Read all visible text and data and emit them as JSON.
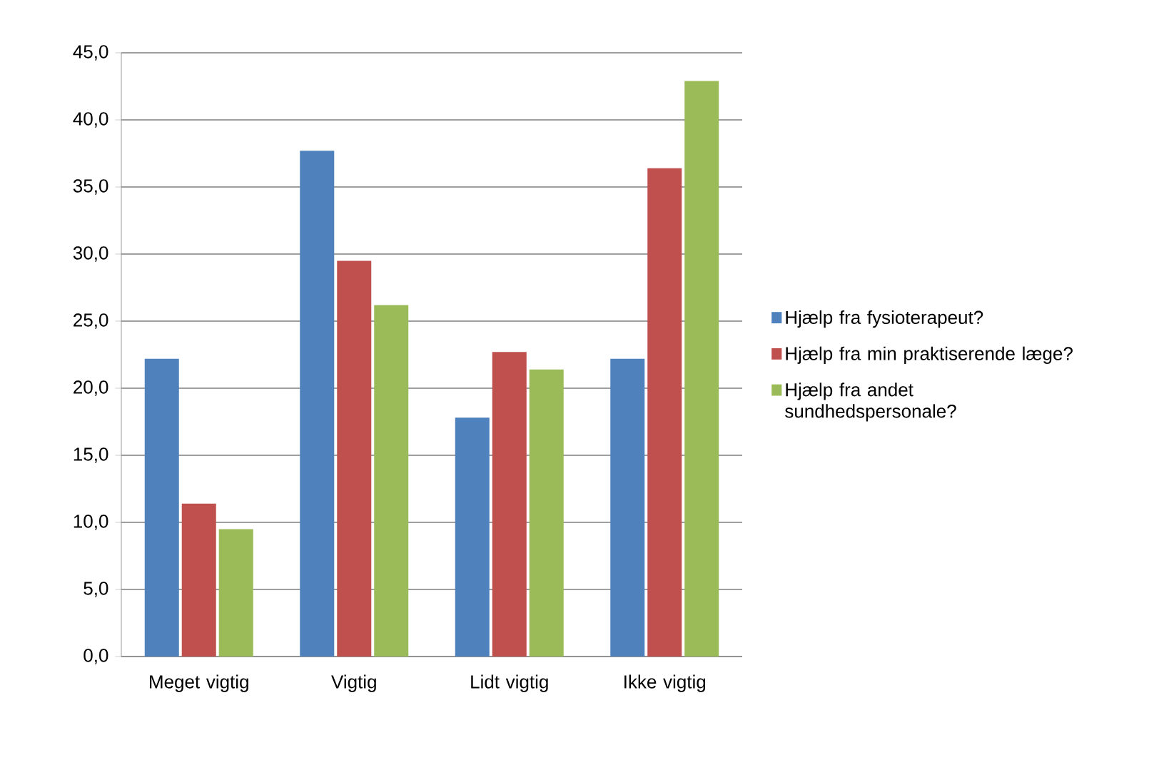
{
  "chart_data": {
    "type": "bar",
    "categories": [
      "Meget vigtig",
      "Vigtig",
      "Lidt vigtig",
      "Ikke vigtig"
    ],
    "series": [
      {
        "name": "Hjælp fra fysioterapeut?",
        "color": "#4f81bd",
        "values": [
          22.2,
          37.7,
          17.8,
          22.2
        ]
      },
      {
        "name": "Hjælp fra min praktiserende læge?",
        "color": "#c0504d",
        "values": [
          11.4,
          29.5,
          22.7,
          36.4
        ]
      },
      {
        "name": "Hjælp fra andet sundhedspersonale?",
        "color": "#9bbb59",
        "values": [
          9.5,
          26.2,
          21.4,
          42.9
        ]
      }
    ],
    "ylim": [
      0,
      45
    ],
    "yticks": [
      {
        "value": 0,
        "label": "0,0"
      },
      {
        "value": 5,
        "label": "5,0"
      },
      {
        "value": 10,
        "label": "10,0"
      },
      {
        "value": 15,
        "label": "15,0"
      },
      {
        "value": 20,
        "label": "20,0"
      },
      {
        "value": 25,
        "label": "25,0"
      },
      {
        "value": 30,
        "label": "30,0"
      },
      {
        "value": 35,
        "label": "35,0"
      },
      {
        "value": 40,
        "label": "40,0"
      },
      {
        "value": 45,
        "label": "45,0"
      }
    ],
    "grid": "y",
    "legend": "right"
  }
}
